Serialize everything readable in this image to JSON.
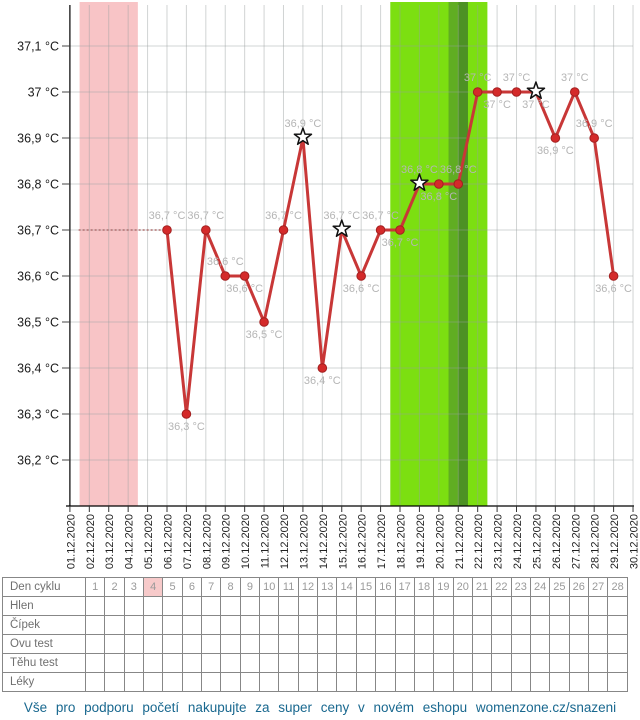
{
  "chart_data": {
    "type": "line",
    "title": "",
    "unit": "°C",
    "ylim": [
      36.1,
      37.19
    ],
    "grid": true,
    "y_ticks": [
      {
        "label": "37,1 °C",
        "value": 37.1
      },
      {
        "label": "37 °C",
        "value": 37.0
      },
      {
        "label": "36,9 °C",
        "value": 36.9
      },
      {
        "label": "36,8 °C",
        "value": 36.8
      },
      {
        "label": "36,7 °C",
        "value": 36.7
      },
      {
        "label": "36,6 °C",
        "value": 36.6
      },
      {
        "label": "36,5 °C",
        "value": 36.5
      },
      {
        "label": "36,4 °C",
        "value": 36.4
      },
      {
        "label": "36,3 °C",
        "value": 36.3
      },
      {
        "label": "36,2 °C",
        "value": 36.2
      }
    ],
    "x_dates": [
      "01.12.2020",
      "02.12.2020",
      "03.12.2020",
      "04.12.2020",
      "05.12.2020",
      "06.12.2020",
      "07.12.2020",
      "08.12.2020",
      "09.12.2020",
      "10.12.2020",
      "11.12.2020",
      "12.12.2020",
      "13.12.2020",
      "14.12.2020",
      "15.12.2020",
      "16.12.2020",
      "17.12.2020",
      "18.12.2020",
      "19.12.2020",
      "20.12.2020",
      "21.12.2020",
      "22.12.2020",
      "23.12.2020",
      "24.12.2020",
      "25.12.2020",
      "26.12.2020",
      "27.12.2020",
      "28.12.2020",
      "29.12.2020",
      "30.12.2020"
    ],
    "bands": [
      {
        "name": "menstruation-band",
        "from": 1.5,
        "to": 4.5,
        "color": "#f8c4c6"
      },
      {
        "name": "fertile-window-band",
        "from": 17.5,
        "to": 22.5,
        "color": "#7cdf11"
      },
      {
        "name": "ovulation-day-band-early",
        "from": 20.5,
        "to": 21.0,
        "color": "#60ad22"
      },
      {
        "name": "ovulation-day-band-late",
        "from": 21.0,
        "to": 21.5,
        "color": "#4d9124"
      }
    ],
    "no_data_line": {
      "value": 36.7,
      "from": 1.45,
      "to": 6
    },
    "points": [
      {
        "day": 6,
        "date": "06.12.2020",
        "value": 36.7,
        "label": "36,7 °C",
        "label_pos": "above",
        "marker": "dot"
      },
      {
        "day": 7,
        "date": "07.12.2020",
        "value": 36.3,
        "label": "36,3 °C",
        "label_pos": "below",
        "marker": "dot"
      },
      {
        "day": 8,
        "date": "08.12.2020",
        "value": 36.7,
        "label": "36,7 °C",
        "label_pos": "above",
        "marker": "dot"
      },
      {
        "day": 9,
        "date": "09.12.2020",
        "value": 36.6,
        "label": "36,6 °C",
        "label_pos": "above",
        "marker": "dot"
      },
      {
        "day": 10,
        "date": "10.12.2020",
        "value": 36.6,
        "label": "36,6 °C",
        "label_pos": "below",
        "marker": "dot"
      },
      {
        "day": 11,
        "date": "11.12.2020",
        "value": 36.5,
        "label": "36,5 °C",
        "label_pos": "below",
        "marker": "dot"
      },
      {
        "day": 12,
        "date": "12.12.2020",
        "value": 36.7,
        "label": "36,7 °C",
        "label_pos": "above",
        "marker": "dot"
      },
      {
        "day": 13,
        "date": "13.12.2020",
        "value": 36.9,
        "label": "36,9 °C",
        "label_pos": "above",
        "marker": "star"
      },
      {
        "day": 14,
        "date": "14.12.2020",
        "value": 36.4,
        "label": "36,4 °C",
        "label_pos": "below",
        "marker": "dot"
      },
      {
        "day": 15,
        "date": "15.12.2020",
        "value": 36.7,
        "label": "36,7 °C",
        "label_pos": "above",
        "marker": "star"
      },
      {
        "day": 16,
        "date": "16.12.2020",
        "value": 36.6,
        "label": "36,6 °C",
        "label_pos": "below",
        "marker": "dot"
      },
      {
        "day": 17,
        "date": "17.12.2020",
        "value": 36.7,
        "label": "36,7 °C",
        "label_pos": "above",
        "marker": "dot"
      },
      {
        "day": 18,
        "date": "18.12.2020",
        "value": 36.7,
        "label": "36,7 °C",
        "label_pos": "below",
        "marker": "dot"
      },
      {
        "day": 19,
        "date": "19.12.2020",
        "value": 36.8,
        "label": "36,8 °C",
        "label_pos": "above",
        "marker": "star"
      },
      {
        "day": 20,
        "date": "20.12.2020",
        "value": 36.8,
        "label": "36,8 °C",
        "label_pos": "below",
        "marker": "dot"
      },
      {
        "day": 21,
        "date": "21.12.2020",
        "value": 36.8,
        "label": "36,8 °C",
        "label_pos": "above",
        "marker": "dot"
      },
      {
        "day": 22,
        "date": "22.12.2020",
        "value": 37.0,
        "label": "37 °C",
        "label_pos": "above",
        "marker": "dot"
      },
      {
        "day": 23,
        "date": "23.12.2020",
        "value": 37.0,
        "label": "37 °C",
        "label_pos": "below",
        "marker": "dot"
      },
      {
        "day": 24,
        "date": "24.12.2020",
        "value": 37.0,
        "label": "37 °C",
        "label_pos": "above",
        "marker": "dot"
      },
      {
        "day": 25,
        "date": "25.12.2020",
        "value": 37.0,
        "label": "37 °C",
        "label_pos": "below",
        "marker": "star"
      },
      {
        "day": 26,
        "date": "26.12.2020",
        "value": 36.9,
        "label": "36,9 °C",
        "label_pos": "below",
        "marker": "dot"
      },
      {
        "day": 27,
        "date": "27.12.2020",
        "value": 37.0,
        "label": "37 °C",
        "label_pos": "above",
        "marker": "dot"
      },
      {
        "day": 28,
        "date": "28.12.2020",
        "value": 36.9,
        "label": "36,9 °C",
        "label_pos": "above",
        "marker": "dot"
      },
      {
        "day": 29,
        "date": "29.12.2020",
        "value": 36.6,
        "label": "36,6 °C",
        "label_pos": "below",
        "marker": "dot"
      }
    ],
    "colors": {
      "line": "#c83737",
      "point": "#d42a2a",
      "point_stroke": "#a32020",
      "point_label": "#b5b5b5",
      "grid": "#9aa0a0",
      "axis": "#000000",
      "y_label": "#1b1b1b",
      "date_label": "#222222",
      "star_fill": "#ffffff",
      "star_stroke": "#111111",
      "no_data_line": "#b07070"
    }
  },
  "table": {
    "header_row": {
      "label": "Den cyklu",
      "days": [
        1,
        2,
        3,
        4,
        5,
        6,
        7,
        8,
        9,
        10,
        11,
        12,
        13,
        14,
        15,
        16,
        17,
        18,
        19,
        20,
        21,
        22,
        23,
        24,
        25,
        26,
        27,
        28
      ],
      "highlighted_day": 4,
      "highlight_color": "#f7caca"
    },
    "rows": [
      {
        "key": "hlen",
        "label": "Hlen"
      },
      {
        "key": "cipek",
        "label": "Čípek"
      },
      {
        "key": "ovu-test",
        "label": "Ovu test"
      },
      {
        "key": "tehu-test",
        "label": "Těhu test"
      },
      {
        "key": "leky",
        "label": "Léky"
      }
    ],
    "columns": 28
  },
  "footer": {
    "link_text": "Vše pro podporu početí nakupujte za super ceny v novém eshopu womenzone.cz/snazeni"
  }
}
